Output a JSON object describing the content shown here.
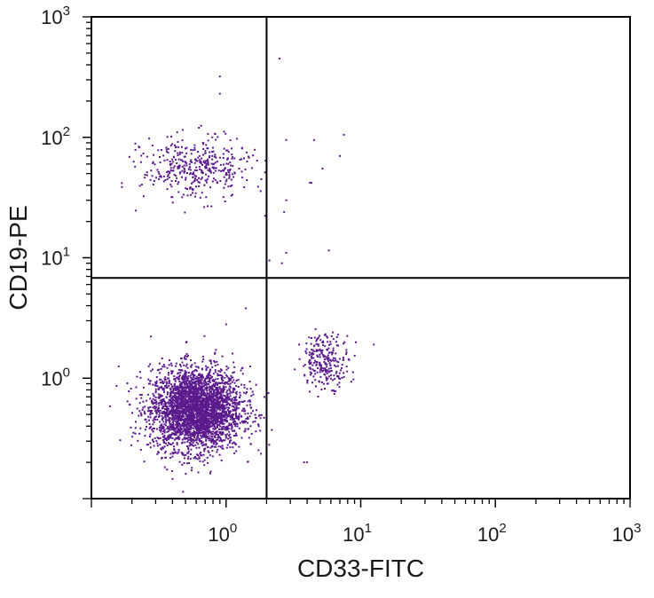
{
  "chart_data": {
    "type": "scatter",
    "title": "",
    "xlabel": "CD33-FITC",
    "ylabel": "CD19-PE",
    "x_scale": "log10",
    "y_scale": "log10",
    "xlim": [
      0.1,
      1000
    ],
    "ylim": [
      0.1,
      1000
    ],
    "x_ticks": [
      {
        "base": "10",
        "exp": "0",
        "value": 1
      },
      {
        "base": "10",
        "exp": "1",
        "value": 10
      },
      {
        "base": "10",
        "exp": "2",
        "value": 100
      },
      {
        "base": "10",
        "exp": "3",
        "value": 1000
      }
    ],
    "y_ticks": [
      {
        "base": "10",
        "exp": "0",
        "value": 1
      },
      {
        "base": "10",
        "exp": "1",
        "value": 10
      },
      {
        "base": "10",
        "exp": "2",
        "value": 100
      },
      {
        "base": "10",
        "exp": "3",
        "value": 1000
      }
    ],
    "grid": false,
    "quadrant_gates": {
      "x": 2.0,
      "y": 6.8
    },
    "point_color": "#5a1a8c",
    "populations": [
      {
        "center_x": 0.6,
        "center_y": 0.55,
        "approx_count": 3200
      },
      {
        "center_x": 0.6,
        "center_y": 55,
        "approx_count": 400
      },
      {
        "center_x": 5.5,
        "center_y": 1.4,
        "approx_count": 250
      }
    ],
    "isolated_points": [
      [
        2.5,
        450
      ],
      [
        0.9,
        320
      ],
      [
        0.9,
        230
      ],
      [
        2.8,
        95
      ],
      [
        4.5,
        95
      ],
      [
        7.5,
        105
      ],
      [
        5.2,
        55
      ],
      [
        7.0,
        70
      ],
      [
        4.2,
        42
      ],
      [
        2.8,
        30
      ],
      [
        2.7,
        24
      ],
      [
        2.8,
        11
      ],
      [
        2.6,
        9
      ],
      [
        5.8,
        11.5
      ],
      [
        2.1,
        9.5
      ],
      [
        4.0,
        0.2
      ],
      [
        3.8,
        0.2
      ],
      [
        12.5,
        1.9
      ],
      [
        1.4,
        3.8
      ],
      [
        1.0,
        2.8
      ]
    ]
  }
}
